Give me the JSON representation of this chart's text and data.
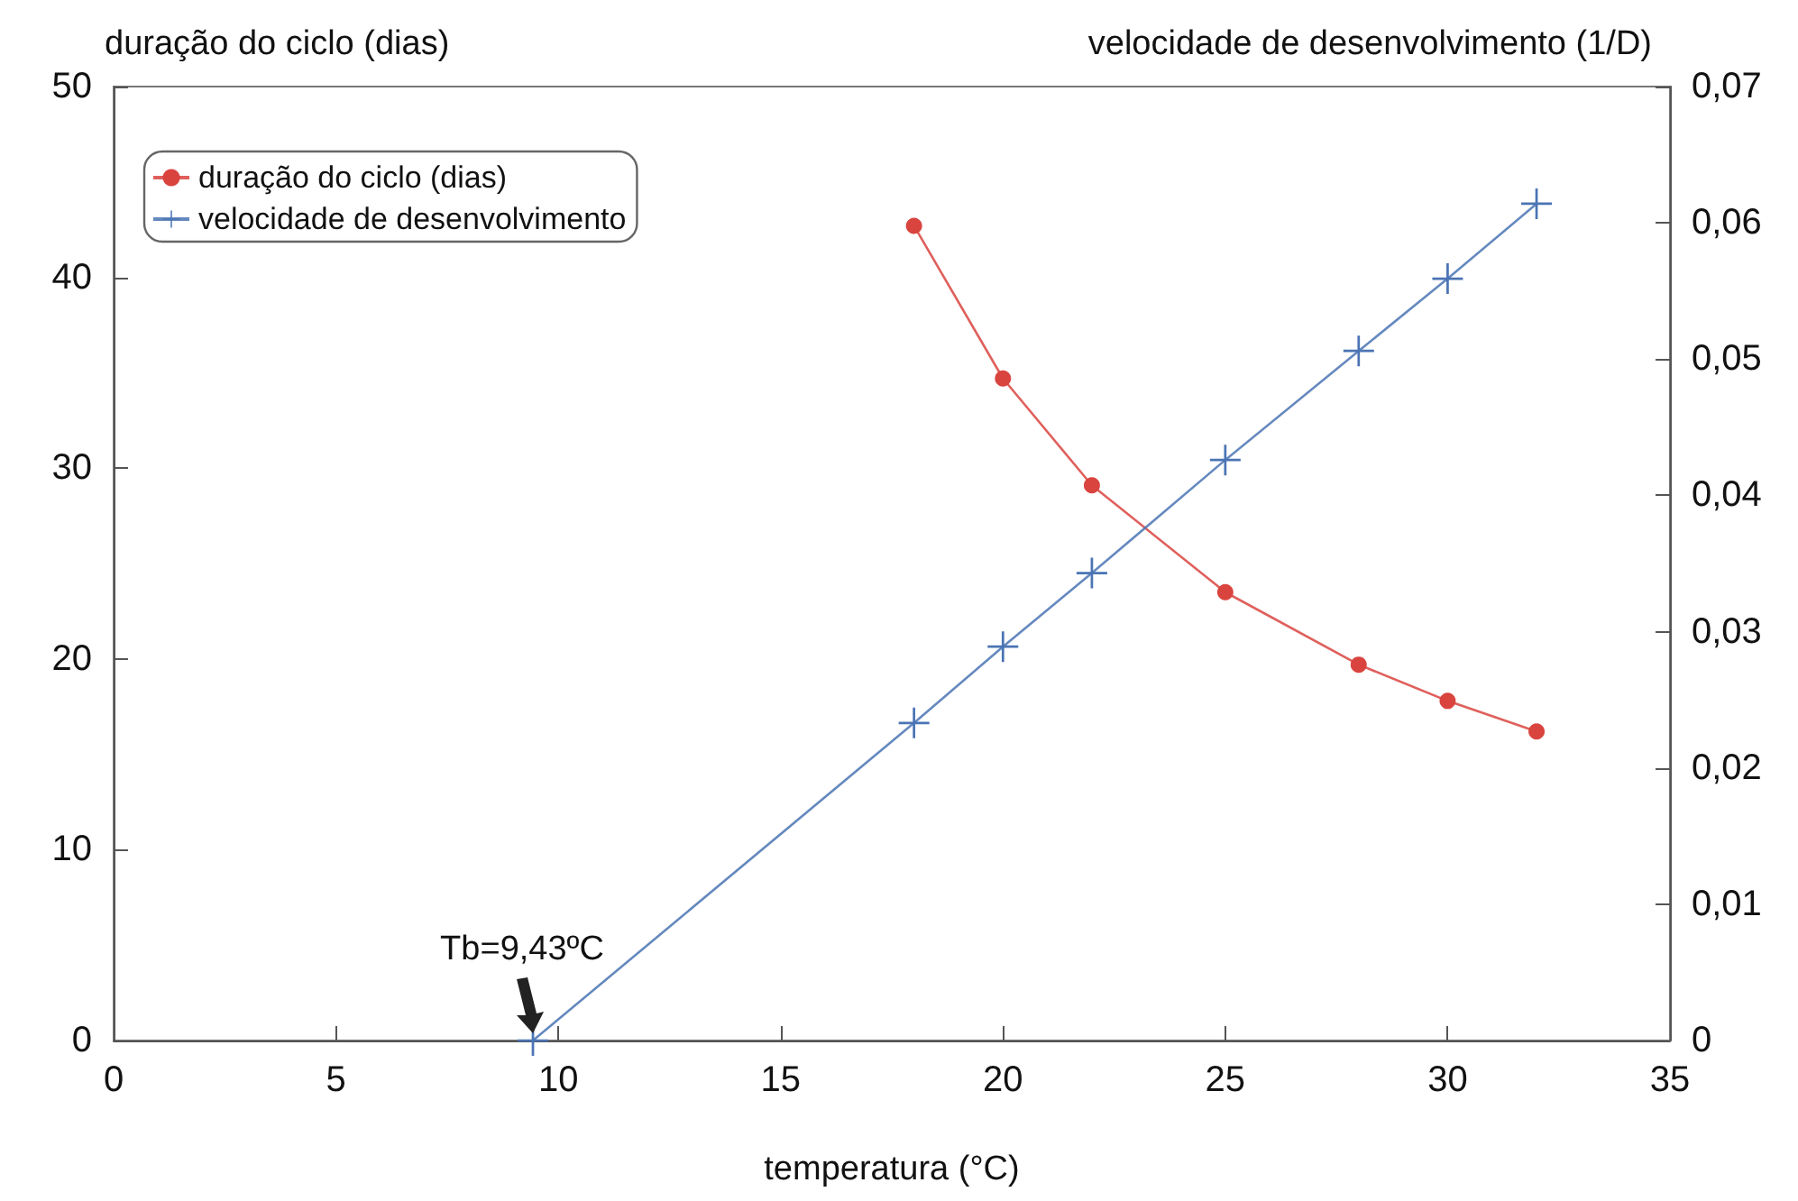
{
  "chart_data": {
    "type": "line",
    "xlabel": "temperatura (°C)",
    "ylabel": "duração do ciclo (dias)",
    "y2label": "velocidade de desenvolvimento (1/D)",
    "series": [
      {
        "name": "duração do ciclo (dias)",
        "color": "#d9443f",
        "marker": "circle",
        "x": [
          18,
          20,
          22,
          25,
          28,
          30,
          32
        ],
        "values": [
          42.7,
          34.7,
          29.1,
          23.5,
          19.7,
          17.8,
          16.2
        ]
      },
      {
        "name": "velocidade de desenvolvimento",
        "color": "#4a74b4",
        "marker": "cross",
        "axis": "y2",
        "x": [
          9.43,
          18,
          20,
          22,
          25,
          28,
          30,
          32
        ],
        "values": [
          0,
          0.0233,
          0.0289,
          0.0343,
          0.0426,
          0.0506,
          0.0559,
          0.0614
        ]
      }
    ],
    "xlim": [
      0,
      35
    ],
    "xticks": [
      0,
      5,
      10,
      15,
      20,
      25,
      30,
      35
    ],
    "ylim": [
      0,
      50
    ],
    "yticks": [
      0,
      10,
      20,
      30,
      40,
      50
    ],
    "y2lim": [
      0,
      0.07
    ],
    "y2ticks": [
      {
        "value": 0,
        "label": "0"
      },
      {
        "value": 0.01,
        "label": "0,01"
      },
      {
        "value": 0.02,
        "label": "0,02"
      },
      {
        "value": 0.03,
        "label": "0,03"
      },
      {
        "value": 0.04,
        "label": "0,04"
      },
      {
        "value": 0.05,
        "label": "0,05"
      },
      {
        "value": 0.06,
        "label": "0,06"
      },
      {
        "value": 0.07,
        "label": "0,07"
      }
    ],
    "annotations": [
      {
        "text": "Tb=9,43ºC",
        "x": 9.43,
        "y": 0
      }
    ],
    "legend": "top left",
    "grid": false
  }
}
